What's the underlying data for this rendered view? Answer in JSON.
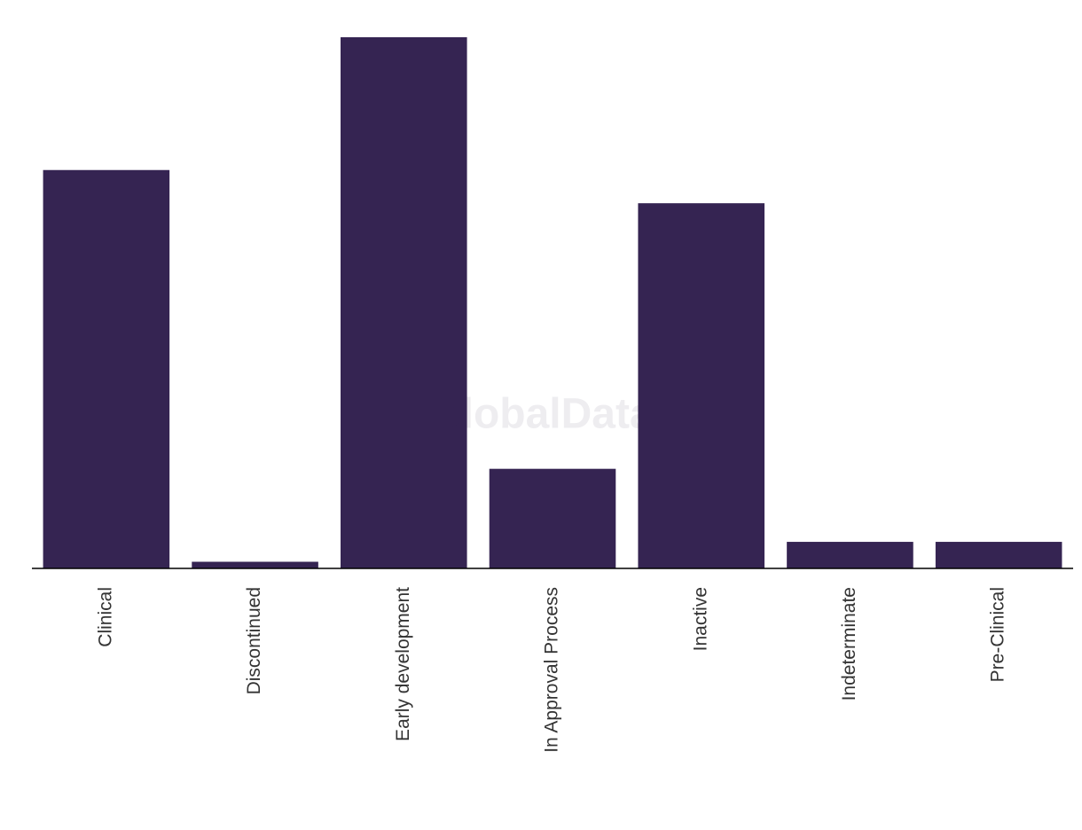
{
  "chart_data": {
    "type": "bar",
    "watermark": "GlobalData",
    "categories": [
      "Clinical",
      "Discontinued",
      "Early development",
      "In Approval Process",
      "Inactive",
      "Indeterminate",
      "Pre-Clinical"
    ],
    "values": [
      60,
      1,
      80,
      15,
      55,
      4,
      4
    ],
    "color": "#352452",
    "ylim": [
      0,
      80
    ]
  }
}
